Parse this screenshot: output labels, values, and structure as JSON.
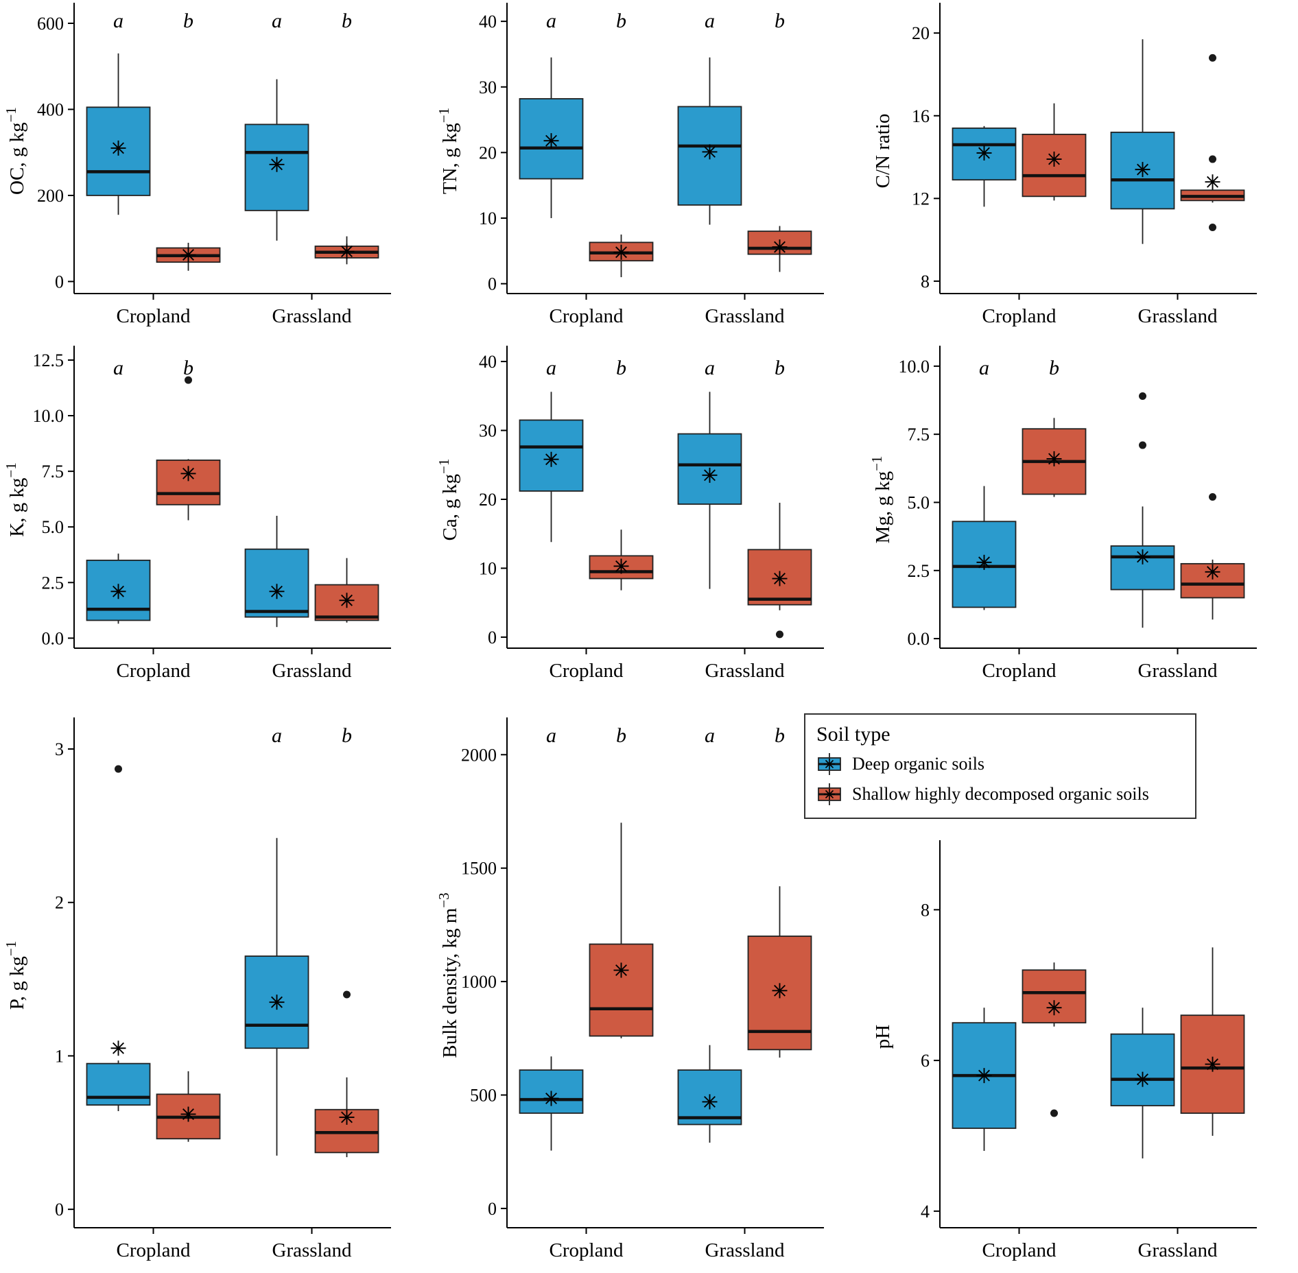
{
  "page": {
    "background": "#ffffff"
  },
  "colors": {
    "deep": "#2B9BCD",
    "shallow": "#CE5A42"
  },
  "categories": [
    "Cropland",
    "Grassland"
  ],
  "legend": {
    "title": "Soil type",
    "entries": [
      {
        "key": "deep",
        "label": "Deep organic soils"
      },
      {
        "key": "shallow",
        "label": "Shallow highly decomposed organic soils"
      }
    ]
  },
  "chart_data": [
    {
      "type": "boxplot",
      "name": "oc",
      "ylabel": "OC, g kg",
      "ylabel_sup": "−1",
      "ylim": [
        -28,
        635
      ],
      "yticks": [
        0,
        200,
        400,
        600
      ],
      "ytick_labels": [
        "0",
        "200",
        "400",
        "600"
      ],
      "boxes": [
        {
          "category": "Cropland",
          "series": "deep",
          "letter": "a",
          "low": 155,
          "q1": 200,
          "median": 255,
          "q3": 405,
          "high": 530,
          "mean": 310,
          "outliers": []
        },
        {
          "category": "Cropland",
          "series": "shallow",
          "letter": "b",
          "low": 25,
          "q1": 45,
          "median": 60,
          "q3": 78,
          "high": 90,
          "mean": 62,
          "outliers": []
        },
        {
          "category": "Grassland",
          "series": "deep",
          "letter": "a",
          "low": 95,
          "q1": 165,
          "median": 300,
          "q3": 365,
          "high": 470,
          "mean": 272,
          "outliers": []
        },
        {
          "category": "Grassland",
          "series": "shallow",
          "letter": "b",
          "low": 40,
          "q1": 55,
          "median": 68,
          "q3": 82,
          "high": 105,
          "mean": 70,
          "outliers": []
        }
      ]
    },
    {
      "type": "boxplot",
      "name": "tn",
      "ylabel": "TN, g kg",
      "ylabel_sup": "−1",
      "ylim": [
        -1.5,
        42
      ],
      "yticks": [
        0,
        10,
        20,
        30,
        40
      ],
      "ytick_labels": [
        "0",
        "10",
        "20",
        "30",
        "40"
      ],
      "boxes": [
        {
          "category": "Cropland",
          "series": "deep",
          "letter": "a",
          "low": 10,
          "q1": 16,
          "median": 20.7,
          "q3": 28.2,
          "high": 34.5,
          "mean": 21.8,
          "outliers": []
        },
        {
          "category": "Cropland",
          "series": "shallow",
          "letter": "b",
          "low": 1,
          "q1": 3.5,
          "median": 4.7,
          "q3": 6.3,
          "high": 7.5,
          "mean": 4.8,
          "outliers": []
        },
        {
          "category": "Grassland",
          "series": "deep",
          "letter": "a",
          "low": 9,
          "q1": 12,
          "median": 21,
          "q3": 27,
          "high": 34.5,
          "mean": 20.1,
          "outliers": []
        },
        {
          "category": "Grassland",
          "series": "shallow",
          "letter": "b",
          "low": 1.8,
          "q1": 4.5,
          "median": 5.4,
          "q3": 8.0,
          "high": 8.8,
          "mean": 5.6,
          "outliers": []
        }
      ]
    },
    {
      "type": "boxplot",
      "name": "cn-ratio",
      "ylabel": "C/N ratio",
      "ylabel_sup": "",
      "ylim": [
        7.4,
        21.2
      ],
      "yticks": [
        8,
        12,
        16,
        20
      ],
      "ytick_labels": [
        "8",
        "12",
        "16",
        "20"
      ],
      "boxes": [
        {
          "category": "Cropland",
          "series": "deep",
          "letter": null,
          "low": 11.6,
          "q1": 12.9,
          "median": 14.6,
          "q3": 15.4,
          "high": 15.5,
          "mean": 14.2,
          "outliers": []
        },
        {
          "category": "Cropland",
          "series": "shallow",
          "letter": null,
          "low": 11.9,
          "q1": 12.1,
          "median": 13.1,
          "q3": 15.1,
          "high": 16.6,
          "mean": 13.9,
          "outliers": []
        },
        {
          "category": "Grassland",
          "series": "deep",
          "letter": null,
          "low": 9.8,
          "q1": 11.5,
          "median": 12.9,
          "q3": 15.2,
          "high": 19.7,
          "mean": 13.4,
          "outliers": []
        },
        {
          "category": "Grassland",
          "series": "shallow",
          "letter": null,
          "low": 11.8,
          "q1": 11.9,
          "median": 12.1,
          "q3": 12.4,
          "high": 12.5,
          "mean": 12.8,
          "outliers": [
            18.8,
            13.9,
            10.6
          ]
        }
      ]
    },
    {
      "type": "boxplot",
      "name": "k",
      "ylabel": "K, g kg",
      "ylabel_sup": "−1",
      "ylim": [
        -0.45,
        12.9
      ],
      "yticks": [
        0,
        2.5,
        5,
        7.5,
        10,
        12.5
      ],
      "ytick_labels": [
        "0.0",
        "2.5",
        "5.0",
        "7.5",
        "10.0",
        "12.5"
      ],
      "boxes": [
        {
          "category": "Cropland",
          "series": "deep",
          "letter": "a",
          "low": 0.65,
          "q1": 0.8,
          "median": 1.3,
          "q3": 3.5,
          "high": 3.8,
          "mean": 2.1,
          "outliers": []
        },
        {
          "category": "Cropland",
          "series": "shallow",
          "letter": "b",
          "low": 5.3,
          "q1": 6.0,
          "median": 6.5,
          "q3": 8.0,
          "high": 8.05,
          "mean": 7.4,
          "outliers": [
            11.6
          ]
        },
        {
          "category": "Grassland",
          "series": "deep",
          "letter": null,
          "low": 0.5,
          "q1": 0.95,
          "median": 1.2,
          "q3": 4.0,
          "high": 5.5,
          "mean": 2.1,
          "outliers": []
        },
        {
          "category": "Grassland",
          "series": "shallow",
          "letter": null,
          "low": 0.7,
          "q1": 0.8,
          "median": 0.95,
          "q3": 2.4,
          "high": 3.6,
          "mean": 1.7,
          "outliers": []
        }
      ]
    },
    {
      "type": "boxplot",
      "name": "ca",
      "ylabel": "Ca, g kg",
      "ylabel_sup": "−1",
      "ylim": [
        -1.6,
        41.5
      ],
      "yticks": [
        0,
        10,
        20,
        30,
        40
      ],
      "ytick_labels": [
        "0",
        "10",
        "20",
        "30",
        "40"
      ],
      "boxes": [
        {
          "category": "Cropland",
          "series": "deep",
          "letter": "a",
          "low": 13.8,
          "q1": 21.2,
          "median": 27.6,
          "q3": 31.5,
          "high": 35.6,
          "mean": 25.8,
          "outliers": []
        },
        {
          "category": "Cropland",
          "series": "shallow",
          "letter": "b",
          "low": 6.8,
          "q1": 8.5,
          "median": 9.5,
          "q3": 11.8,
          "high": 15.6,
          "mean": 10.3,
          "outliers": []
        },
        {
          "category": "Grassland",
          "series": "deep",
          "letter": "a",
          "low": 7.0,
          "q1": 19.3,
          "median": 25.0,
          "q3": 29.5,
          "high": 35.6,
          "mean": 23.5,
          "outliers": []
        },
        {
          "category": "Grassland",
          "series": "shallow",
          "letter": "b",
          "low": 3.9,
          "q1": 4.7,
          "median": 5.5,
          "q3": 12.7,
          "high": 19.5,
          "mean": 8.5,
          "outliers": [
            0.4
          ]
        }
      ]
    },
    {
      "type": "boxplot",
      "name": "mg",
      "ylabel": "Mg, g kg",
      "ylabel_sup": "−1",
      "ylim": [
        -0.35,
        10.55
      ],
      "yticks": [
        0,
        2.5,
        5,
        7.5,
        10
      ],
      "ytick_labels": [
        "0.0",
        "2.5",
        "5.0",
        "7.5",
        "10.0"
      ],
      "boxes": [
        {
          "category": "Cropland",
          "series": "deep",
          "letter": "a",
          "low": 1.05,
          "q1": 1.15,
          "median": 2.65,
          "q3": 4.3,
          "high": 5.6,
          "mean": 2.8,
          "outliers": []
        },
        {
          "category": "Cropland",
          "series": "shallow",
          "letter": "b",
          "low": 5.2,
          "q1": 5.3,
          "median": 6.5,
          "q3": 7.7,
          "high": 8.1,
          "mean": 6.6,
          "outliers": []
        },
        {
          "category": "Grassland",
          "series": "deep",
          "letter": null,
          "low": 0.4,
          "q1": 1.8,
          "median": 3.0,
          "q3": 3.4,
          "high": 4.85,
          "mean": 3.0,
          "outliers": [
            8.9,
            7.1
          ]
        },
        {
          "category": "Grassland",
          "series": "shallow",
          "letter": null,
          "low": 0.7,
          "q1": 1.5,
          "median": 2.0,
          "q3": 2.75,
          "high": 2.9,
          "mean": 2.45,
          "outliers": [
            5.2
          ]
        }
      ]
    },
    {
      "type": "boxplot",
      "name": "p",
      "ylabel": "P, g kg",
      "ylabel_sup": "−1",
      "ylim": [
        -0.12,
        3.17
      ],
      "yticks": [
        0,
        1,
        2,
        3
      ],
      "ytick_labels": [
        "0",
        "1",
        "2",
        "3"
      ],
      "boxes": [
        {
          "category": "Cropland",
          "series": "deep",
          "letter": null,
          "low": 0.64,
          "q1": 0.68,
          "median": 0.73,
          "q3": 0.95,
          "high": 0.97,
          "mean": 1.05,
          "outliers": [
            2.87
          ]
        },
        {
          "category": "Cropland",
          "series": "shallow",
          "letter": null,
          "low": 0.44,
          "q1": 0.46,
          "median": 0.6,
          "q3": 0.75,
          "high": 0.9,
          "mean": 0.62,
          "outliers": []
        },
        {
          "category": "Grassland",
          "series": "deep",
          "letter": "a",
          "low": 0.35,
          "q1": 1.05,
          "median": 1.2,
          "q3": 1.65,
          "high": 2.42,
          "mean": 1.35,
          "outliers": []
        },
        {
          "category": "Grassland",
          "series": "shallow",
          "letter": "b",
          "low": 0.34,
          "q1": 0.37,
          "median": 0.5,
          "q3": 0.65,
          "high": 0.86,
          "mean": 0.6,
          "outliers": [
            1.4
          ]
        }
      ]
    },
    {
      "type": "boxplot",
      "name": "bulk-density",
      "ylabel": "Bulk density, kg m",
      "ylabel_sup": "−3",
      "ylim": [
        -85,
        2140
      ],
      "yticks": [
        0,
        500,
        1000,
        1500,
        2000
      ],
      "ytick_labels": [
        "0",
        "500",
        "1000",
        "1500",
        "2000"
      ],
      "boxes": [
        {
          "category": "Cropland",
          "series": "deep",
          "letter": "a",
          "low": 255,
          "q1": 420,
          "median": 480,
          "q3": 610,
          "high": 670,
          "mean": 485,
          "outliers": []
        },
        {
          "category": "Cropland",
          "series": "shallow",
          "letter": "b",
          "low": 750,
          "q1": 760,
          "median": 880,
          "q3": 1165,
          "high": 1700,
          "mean": 1050,
          "outliers": []
        },
        {
          "category": "Grassland",
          "series": "deep",
          "letter": "a",
          "low": 290,
          "q1": 370,
          "median": 400,
          "q3": 610,
          "high": 720,
          "mean": 470,
          "outliers": []
        },
        {
          "category": "Grassland",
          "series": "shallow",
          "letter": "b",
          "low": 665,
          "q1": 700,
          "median": 780,
          "q3": 1200,
          "high": 1420,
          "mean": 960,
          "outliers": []
        }
      ]
    },
    {
      "type": "boxplot",
      "name": "ph",
      "ylabel": "pH",
      "ylabel_sup": "",
      "plot_top": 205,
      "ylim": [
        3.78,
        8.85
      ],
      "yticks": [
        4,
        6,
        8
      ],
      "ytick_labels": [
        "4",
        "6",
        "8"
      ],
      "boxes": [
        {
          "category": "Cropland",
          "series": "deep",
          "letter": null,
          "low": 4.8,
          "q1": 5.1,
          "median": 5.8,
          "q3": 6.5,
          "high": 6.7,
          "mean": 5.8,
          "outliers": []
        },
        {
          "category": "Cropland",
          "series": "shallow",
          "letter": null,
          "low": 6.45,
          "q1": 6.5,
          "median": 6.9,
          "q3": 7.2,
          "high": 7.3,
          "mean": 6.7,
          "outliers": [
            5.3
          ]
        },
        {
          "category": "Grassland",
          "series": "deep",
          "letter": null,
          "low": 4.7,
          "q1": 5.4,
          "median": 5.75,
          "q3": 6.35,
          "high": 6.7,
          "mean": 5.75,
          "outliers": []
        },
        {
          "category": "Grassland",
          "series": "shallow",
          "letter": null,
          "low": 5.0,
          "q1": 5.3,
          "median": 5.9,
          "q3": 6.6,
          "high": 7.5,
          "mean": 5.95,
          "outliers": []
        }
      ]
    }
  ]
}
